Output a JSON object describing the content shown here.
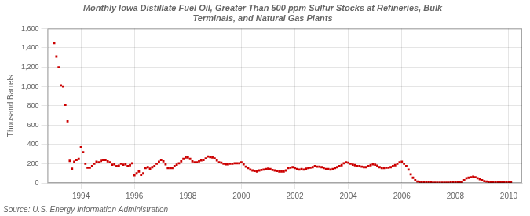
{
  "chart_data": {
    "type": "scatter",
    "title": "Monthly Iowa Distillate Fuel Oil, Greater Than 500 ppm Sulfur Stocks at Refineries, Bulk\nTerminals, and Natural Gas Plants",
    "ylabel": "Thousand Barrels",
    "source": "Source: U.S. Energy Information Administration",
    "color": "#cc0000",
    "marker": "square",
    "grid": true,
    "xlim": [
      1992.75,
      2010.5
    ],
    "xticks": [
      1994,
      1996,
      1998,
      2000,
      2002,
      2004,
      2006,
      2008,
      2010
    ],
    "ylim": [
      0,
      1600
    ],
    "yticks": [
      0,
      200,
      400,
      600,
      800,
      {
        "value": 1000,
        "label": "1,000"
      },
      {
        "value": 1200,
        "label": "1,200"
      },
      {
        "value": 1400,
        "label": "1,400"
      },
      {
        "value": 1600,
        "label": "1,600"
      }
    ],
    "x": [
      1993.0,
      1993.083,
      1993.167,
      1993.25,
      1993.333,
      1993.417,
      1993.5,
      1993.583,
      1993.667,
      1993.75,
      1993.833,
      1993.917,
      1994.0,
      1994.083,
      1994.167,
      1994.25,
      1994.333,
      1994.417,
      1994.5,
      1994.583,
      1994.667,
      1994.75,
      1994.833,
      1994.917,
      1995.0,
      1995.083,
      1995.167,
      1995.25,
      1995.333,
      1995.417,
      1995.5,
      1995.583,
      1995.667,
      1995.75,
      1995.833,
      1995.917,
      1996.0,
      1996.083,
      1996.167,
      1996.25,
      1996.333,
      1996.417,
      1996.5,
      1996.583,
      1996.667,
      1996.75,
      1996.833,
      1996.917,
      1997.0,
      1997.083,
      1997.167,
      1997.25,
      1997.333,
      1997.417,
      1997.5,
      1997.583,
      1997.667,
      1997.75,
      1997.833,
      1997.917,
      1998.0,
      1998.083,
      1998.167,
      1998.25,
      1998.333,
      1998.417,
      1998.5,
      1998.583,
      1998.667,
      1998.75,
      1998.833,
      1998.917,
      1999.0,
      1999.083,
      1999.167,
      1999.25,
      1999.333,
      1999.417,
      1999.5,
      1999.583,
      1999.667,
      1999.75,
      1999.833,
      1999.917,
      2000.0,
      2000.083,
      2000.167,
      2000.25,
      2000.333,
      2000.417,
      2000.5,
      2000.583,
      2000.667,
      2000.75,
      2000.833,
      2000.917,
      2001.0,
      2001.083,
      2001.167,
      2001.25,
      2001.333,
      2001.417,
      2001.5,
      2001.583,
      2001.667,
      2001.75,
      2001.833,
      2001.917,
      2002.0,
      2002.083,
      2002.167,
      2002.25,
      2002.333,
      2002.417,
      2002.5,
      2002.583,
      2002.667,
      2002.75,
      2002.833,
      2002.917,
      2003.0,
      2003.083,
      2003.167,
      2003.25,
      2003.333,
      2003.417,
      2003.5,
      2003.583,
      2003.667,
      2003.75,
      2003.833,
      2003.917,
      2004.0,
      2004.083,
      2004.167,
      2004.25,
      2004.333,
      2004.417,
      2004.5,
      2004.583,
      2004.667,
      2004.75,
      2004.833,
      2004.917,
      2005.0,
      2005.083,
      2005.167,
      2005.25,
      2005.333,
      2005.417,
      2005.5,
      2005.583,
      2005.667,
      2005.75,
      2005.833,
      2005.917,
      2006.0,
      2006.083,
      2006.167,
      2006.25,
      2006.333,
      2006.417,
      2006.5,
      2006.583,
      2006.667,
      2006.75,
      2006.833,
      2006.917,
      2007.0,
      2007.083,
      2007.167,
      2007.25,
      2007.333,
      2007.417,
      2007.5,
      2007.583,
      2007.667,
      2007.75,
      2007.833,
      2007.917,
      2008.0,
      2008.083,
      2008.167,
      2008.25,
      2008.333,
      2008.417,
      2008.5,
      2008.583,
      2008.667,
      2008.75,
      2008.833,
      2008.917,
      2009.0,
      2009.083,
      2009.167,
      2009.25,
      2009.333,
      2009.417,
      2009.5,
      2009.583,
      2009.667,
      2009.75,
      2009.833,
      2009.917,
      2010.0,
      2010.083
    ],
    "values": [
      1450,
      1310,
      1200,
      1010,
      1000,
      810,
      640,
      230,
      150,
      220,
      240,
      250,
      370,
      320,
      200,
      160,
      160,
      175,
      200,
      220,
      215,
      230,
      240,
      240,
      225,
      215,
      190,
      195,
      175,
      180,
      200,
      190,
      195,
      175,
      185,
      205,
      80,
      100,
      120,
      85,
      100,
      155,
      165,
      150,
      165,
      175,
      200,
      220,
      240,
      225,
      195,
      155,
      155,
      155,
      175,
      190,
      205,
      225,
      250,
      265,
      265,
      250,
      225,
      215,
      215,
      225,
      235,
      240,
      255,
      275,
      270,
      265,
      255,
      235,
      215,
      210,
      200,
      195,
      195,
      200,
      200,
      205,
      205,
      205,
      215,
      195,
      170,
      155,
      140,
      130,
      125,
      120,
      130,
      135,
      140,
      145,
      150,
      145,
      135,
      130,
      125,
      120,
      120,
      120,
      130,
      155,
      160,
      165,
      155,
      145,
      140,
      145,
      140,
      150,
      155,
      160,
      165,
      175,
      170,
      170,
      165,
      155,
      145,
      145,
      140,
      145,
      155,
      165,
      175,
      185,
      205,
      215,
      210,
      200,
      190,
      185,
      175,
      175,
      170,
      165,
      165,
      175,
      185,
      195,
      190,
      180,
      165,
      155,
      155,
      160,
      160,
      165,
      175,
      185,
      200,
      215,
      220,
      200,
      175,
      140,
      90,
      55,
      30,
      15,
      10,
      8,
      7,
      5,
      5,
      4,
      3,
      3,
      3,
      3,
      3,
      3,
      3,
      3,
      4,
      5,
      5,
      5,
      5,
      6,
      30,
      50,
      55,
      60,
      65,
      60,
      50,
      40,
      30,
      20,
      15,
      12,
      10,
      8,
      6,
      5,
      5,
      5,
      5,
      5,
      5,
      5
    ]
  }
}
